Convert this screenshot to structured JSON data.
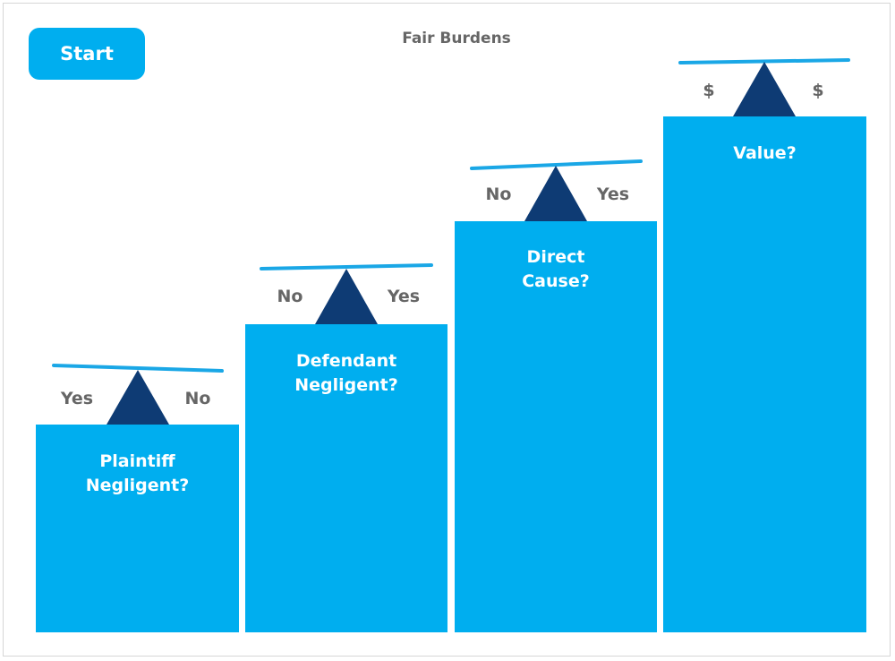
{
  "title": "Fair Burdens",
  "start_button": {
    "label": "Start"
  },
  "colors": {
    "block": "#00aeef",
    "fulcrum": "#0e3b74",
    "beam": "#1aa7e6",
    "side_text": "#666666"
  },
  "steps": [
    {
      "label_line1": "Plaintiff",
      "label_line2": "Negligent?",
      "left_side": "Yes",
      "right_side": "No"
    },
    {
      "label_line1": "Defendant",
      "label_line2": "Negligent?",
      "left_side": "No",
      "right_side": "Yes"
    },
    {
      "label_line1": "Direct",
      "label_line2": "Cause?",
      "left_side": "No",
      "right_side": "Yes"
    },
    {
      "label_line1": "Value?",
      "label_line2": "",
      "left_side": "$",
      "right_side": "$"
    }
  ]
}
